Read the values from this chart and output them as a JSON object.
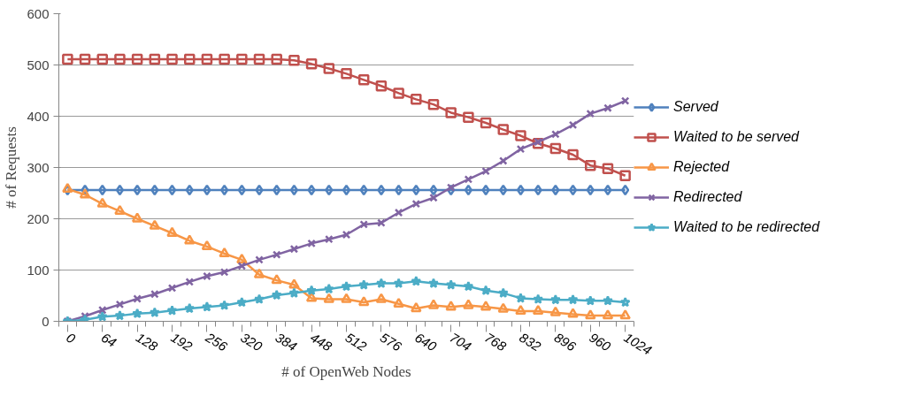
{
  "chart_data": {
    "type": "line",
    "xlabel": "# of OpenWeb Nodes",
    "ylabel": "# of Requests",
    "categories": [
      "0",
      null,
      "64",
      null,
      "128",
      null,
      "192",
      null,
      "256",
      null,
      "320",
      null,
      "384",
      null,
      "448",
      null,
      "512",
      null,
      "576",
      null,
      "640",
      null,
      "704",
      null,
      "768",
      null,
      "832",
      null,
      "896",
      null,
      "960",
      null,
      "1024"
    ],
    "series": [
      {
        "name": "Served",
        "color": "#4f81bd",
        "marker": "diamond",
        "values": [
          256,
          256,
          256,
          256,
          256,
          256,
          256,
          256,
          256,
          256,
          256,
          256,
          256,
          256,
          256,
          256,
          256,
          256,
          256,
          256,
          256,
          256,
          256,
          256,
          256,
          256,
          256,
          256,
          256,
          256,
          256,
          256,
          256
        ]
      },
      {
        "name": "Waited to be served",
        "color": "#c0504d",
        "marker": "square",
        "values": [
          511,
          511,
          511,
          511,
          511,
          511,
          511,
          511,
          511,
          511,
          511,
          511,
          511,
          509,
          502,
          493,
          483,
          471,
          459,
          445,
          433,
          423,
          407,
          398,
          387,
          374,
          362,
          347,
          337,
          325,
          304,
          298,
          284
        ]
      },
      {
        "name": "Rejected",
        "color": "#f79646",
        "marker": "triangle",
        "values": [
          258,
          247,
          229,
          215,
          200,
          186,
          172,
          157,
          146,
          132,
          120,
          91,
          80,
          71,
          45,
          43,
          43,
          37,
          43,
          34,
          25,
          31,
          28,
          31,
          28,
          24,
          20,
          20,
          17,
          14,
          11,
          11,
          11
        ]
      },
      {
        "name": "Redirected",
        "color": "#8064a2",
        "marker": "cross",
        "values": [
          0,
          10,
          22,
          33,
          44,
          53,
          65,
          77,
          88,
          96,
          108,
          120,
          130,
          141,
          152,
          160,
          169,
          189,
          192,
          212,
          229,
          241,
          261,
          277,
          293,
          313,
          336,
          350,
          365,
          383,
          405,
          416,
          430
        ]
      },
      {
        "name": "Waited to be redirected",
        "color": "#4bacc6",
        "marker": "star",
        "values": [
          0,
          3,
          9,
          11,
          15,
          17,
          21,
          25,
          28,
          31,
          37,
          43,
          51,
          55,
          60,
          63,
          68,
          71,
          74,
          74,
          78,
          74,
          71,
          68,
          60,
          55,
          45,
          43,
          42,
          42,
          40,
          40,
          37
        ]
      }
    ],
    "ylim": [
      0,
      600
    ],
    "yticks": [
      0,
      100,
      200,
      300,
      400,
      500,
      600
    ],
    "grid": "y",
    "legend": "right"
  }
}
